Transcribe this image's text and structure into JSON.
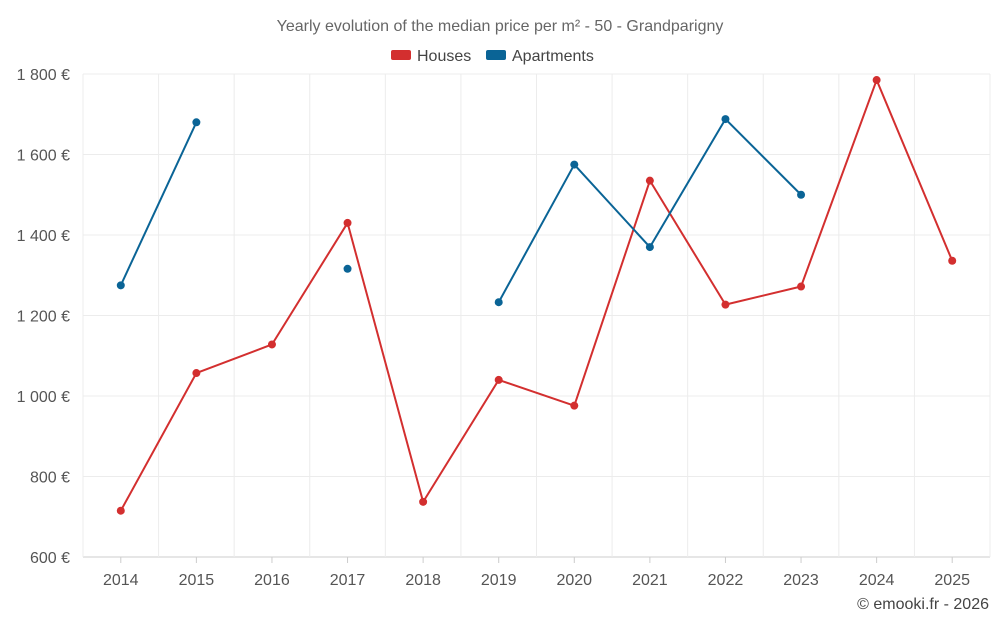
{
  "chart_data": {
    "type": "line",
    "title": "Yearly evolution of the median price per m² - 50 - Grandparigny",
    "categories": [
      "2014",
      "2015",
      "2016",
      "2017",
      "2018",
      "2019",
      "2020",
      "2021",
      "2022",
      "2023",
      "2024",
      "2025"
    ],
    "ylim": [
      600,
      1800
    ],
    "yticks": [
      600,
      800,
      1000,
      1200,
      1400,
      1600,
      1800
    ],
    "ytick_labels": [
      "600 €",
      "800 €",
      "1 000 €",
      "1 200 €",
      "1 400 €",
      "1 600 €",
      "1 800 €"
    ],
    "xlabel": "",
    "ylabel": "",
    "grid": true,
    "legend_position": "top-center",
    "series": [
      {
        "name": "Houses",
        "color": "#d32f2f",
        "values": [
          715,
          1057,
          1128,
          1430,
          737,
          1040,
          976,
          1535,
          1227,
          1272,
          1785,
          1336
        ]
      },
      {
        "name": "Apartments",
        "color": "#0a6496",
        "values": [
          1275,
          1680,
          null,
          1316,
          null,
          1233,
          1575,
          1370,
          1688,
          1500,
          null,
          null
        ]
      }
    ]
  },
  "credit": "© emooki.fr - 2026"
}
